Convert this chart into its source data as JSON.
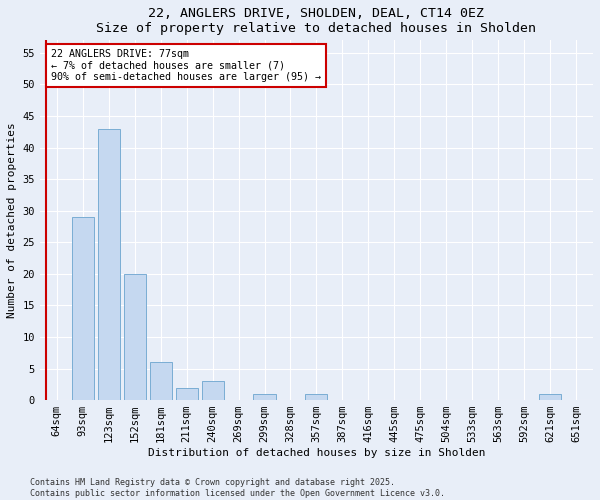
{
  "title1": "22, ANGLERS DRIVE, SHOLDEN, DEAL, CT14 0EZ",
  "title2": "Size of property relative to detached houses in Sholden",
  "xlabel": "Distribution of detached houses by size in Sholden",
  "ylabel": "Number of detached properties",
  "categories": [
    "64sqm",
    "93sqm",
    "123sqm",
    "152sqm",
    "181sqm",
    "211sqm",
    "240sqm",
    "269sqm",
    "299sqm",
    "328sqm",
    "357sqm",
    "387sqm",
    "416sqm",
    "445sqm",
    "475sqm",
    "504sqm",
    "533sqm",
    "563sqm",
    "592sqm",
    "621sqm",
    "651sqm"
  ],
  "values": [
    0,
    29,
    43,
    20,
    6,
    2,
    3,
    0,
    1,
    0,
    1,
    0,
    0,
    0,
    0,
    0,
    0,
    0,
    0,
    1,
    0
  ],
  "bar_color": "#c5d8f0",
  "bar_edge_color": "#7aadd4",
  "annotation_text": "22 ANGLERS DRIVE: 77sqm\n← 7% of detached houses are smaller (7)\n90% of semi-detached houses are larger (95) →",
  "annotation_box_color": "#ffffff",
  "annotation_box_edge": "#cc0000",
  "red_line_color": "#cc0000",
  "ylim": [
    0,
    57
  ],
  "yticks": [
    0,
    5,
    10,
    15,
    20,
    25,
    30,
    35,
    40,
    45,
    50,
    55
  ],
  "footer": "Contains HM Land Registry data © Crown copyright and database right 2025.\nContains public sector information licensed under the Open Government Licence v3.0.",
  "bg_color": "#e8eef8",
  "grid_color": "#ffffff",
  "title_fontsize": 9.5,
  "label_fontsize": 8.0,
  "tick_fontsize": 7.5
}
